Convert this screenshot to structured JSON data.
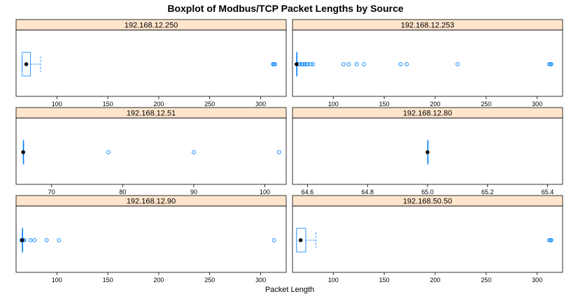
{
  "chart_data": {
    "type": "boxplot",
    "title": "Boxplot of Modbus/TCP Packet Lengths by Source",
    "xlabel": "Packet Length",
    "colors": {
      "strip": "#ffe5cc",
      "box": "#0080ff",
      "median": "#000000",
      "frame": "#000000"
    },
    "panels": [
      {
        "label": "192.168.12.250",
        "xlim": [
          60,
          325
        ],
        "ticks": [
          100,
          150,
          200,
          250,
          300
        ],
        "box": {
          "q1": 66,
          "median": 70,
          "q3": 74,
          "whisker_low": 66,
          "whisker_high": 84
        },
        "outliers": [
          312,
          313,
          314
        ]
      },
      {
        "label": "192.168.12.253",
        "xlim": [
          60,
          325
        ],
        "ticks": [
          100,
          150,
          200,
          250,
          300
        ],
        "box": {
          "q1": 64,
          "median": 64,
          "q3": 64,
          "whisker_low": 64,
          "whisker_high": 64
        },
        "outliers": [
          66,
          67,
          69,
          70,
          72,
          74,
          75,
          78,
          80,
          110,
          115,
          123,
          130,
          166,
          172,
          222,
          312,
          313,
          314
        ]
      },
      {
        "label": "192.168.12.51",
        "xlim": [
          65,
          103
        ],
        "ticks": [
          70,
          80,
          90,
          100
        ],
        "box": {
          "q1": 66,
          "median": 66,
          "q3": 66,
          "whisker_low": 66,
          "whisker_high": 66
        },
        "outliers": [
          78,
          90,
          102
        ]
      },
      {
        "label": "192.168.12.80",
        "xlim": [
          64.55,
          65.45
        ],
        "ticks": [
          64.6,
          64.8,
          65.0,
          65.2,
          65.4
        ],
        "tick_labels": [
          "64.6",
          "64.8",
          "65.0",
          "65.2",
          "65.4"
        ],
        "box": {
          "q1": 65,
          "median": 65,
          "q3": 65,
          "whisker_low": 65,
          "whisker_high": 65
        },
        "outliers": []
      },
      {
        "label": "192.168.12.90",
        "xlim": [
          60,
          325
        ],
        "ticks": [
          100,
          150,
          200,
          250,
          300
        ],
        "box": {
          "q1": 66,
          "median": 66,
          "q3": 66,
          "whisker_low": 66,
          "whisker_high": 66
        },
        "outliers": [
          65,
          67,
          68,
          74,
          78,
          90,
          102,
          313
        ]
      },
      {
        "label": "192.168.50.50",
        "xlim": [
          60,
          325
        ],
        "ticks": [
          100,
          150,
          200,
          250,
          300
        ],
        "box": {
          "q1": 64,
          "median": 68,
          "q3": 73,
          "whisker_low": 64,
          "whisker_high": 83
        },
        "outliers": [
          312,
          313,
          314
        ]
      }
    ]
  }
}
